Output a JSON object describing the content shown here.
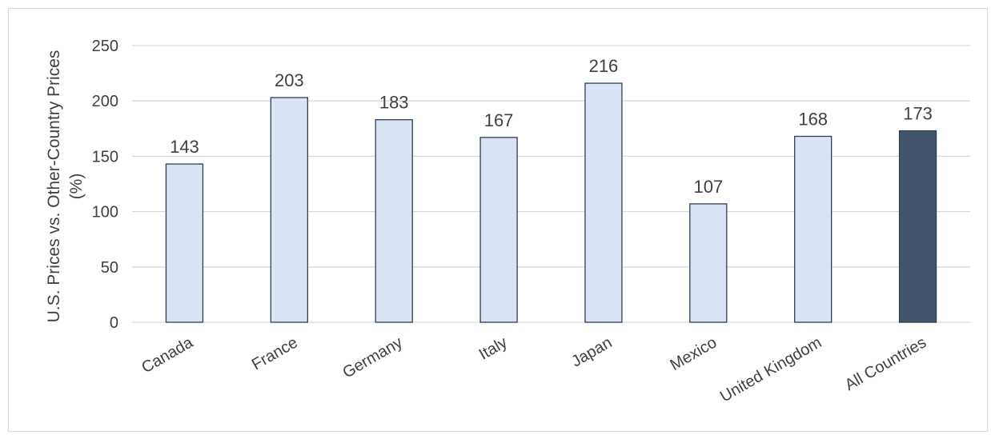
{
  "chart_data": {
    "type": "bar",
    "title": "",
    "xlabel": "",
    "ylabel_lines": [
      "U.S. Prices vs. Other-Country Prices",
      "(%)"
    ],
    "categories": [
      "Canada",
      "France",
      "Germany",
      "Italy",
      "Japan",
      "Mexico",
      "United Kingdom",
      "All Countries"
    ],
    "values": [
      143,
      203,
      183,
      167,
      216,
      107,
      168,
      173
    ],
    "data_labels": [
      "143",
      "203",
      "183",
      "167",
      "216",
      "107",
      "168",
      "173"
    ],
    "ylim": [
      0,
      250
    ],
    "yticks": [
      0,
      50,
      100,
      150,
      200,
      250
    ],
    "ytick_labels": [
      "0",
      "50",
      "100",
      "150",
      "200",
      "250"
    ],
    "grid": true,
    "legend": "none",
    "colors": {
      "bar_fill": "#dae3f3",
      "bar_stroke": "#2f3e52",
      "highlight_fill": "#44546a",
      "highlight_category": "All Countries",
      "grid": "#d9d9d9",
      "text": "#404040"
    }
  }
}
